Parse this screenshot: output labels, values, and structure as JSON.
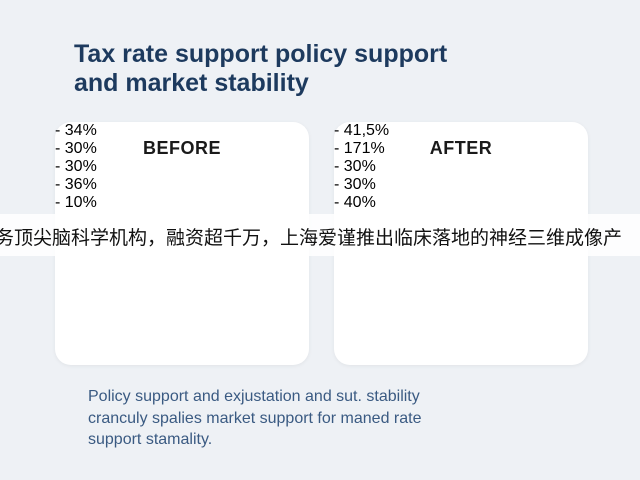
{
  "title_lines": [
    "Tax rate support policy support",
    "and market stability"
  ],
  "cards": [
    {
      "heading": "BEFORE",
      "items": [
        "- 34%",
        "- 30%",
        "- 30%",
        "- 36%",
        "- 10%"
      ]
    },
    {
      "heading": "AFTER",
      "items": [
        "- 41,5%",
        "- 171%",
        "- 30%",
        "- 30%",
        "- 40%"
      ]
    }
  ],
  "caption_lines": [
    "Policy support and exjustation and sut. stability",
    "cranculy spalies market support for maned rate",
    "support stamality."
  ],
  "banner": "务顶尖脑科学机构，融资超千万，上海爱谨推出临床落地的神经三维成像产"
}
